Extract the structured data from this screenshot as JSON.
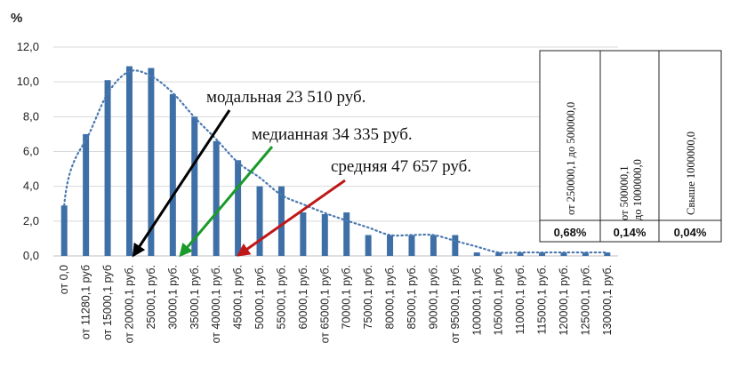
{
  "chart_data": {
    "type": "bar",
    "y_unit": "%",
    "ylim": [
      0,
      12
    ],
    "y_ticks": [
      "0,0",
      "2,0",
      "4,0",
      "6,0",
      "8,0",
      "10,0",
      "12,0"
    ],
    "grid": true,
    "bar_color": "#3e6fa6",
    "trend_color": "#4a78b0",
    "categories": [
      "от 0,0",
      "от 11280,1 руб",
      "от 15000,1 руб",
      "от 20000,1 руб.",
      "25000,1 руб.",
      "30000,1 руб.",
      "35000,1 руб.",
      "от 40000,1 руб.",
      "45000,1 руб.",
      "50000,1 руб.",
      "55000,1 руб.",
      "60000,1 руб.",
      "от 65000,1 руб.",
      "70000,1 руб.",
      "75000,1 руб.",
      "80000,1 руб.",
      "85000,1 руб.",
      "90000,1 руб.",
      "от 95000,1 руб.",
      "100000,1 руб.",
      "105000,1 руб.",
      "110000,1 руб.",
      "115000,1 руб.",
      "120000,1 руб.",
      "125000,1 руб.",
      "130000,1 руб."
    ],
    "values": [
      2.9,
      7.0,
      10.1,
      10.9,
      10.8,
      9.3,
      8.0,
      6.6,
      5.5,
      4.0,
      4.0,
      2.5,
      2.4,
      2.5,
      1.2,
      1.2,
      1.2,
      1.2,
      1.2,
      0.2,
      0.2,
      0.2,
      0.2,
      0.2,
      0.2,
      0.2
    ],
    "annotations": [
      {
        "text": "модальная 23 510 руб.",
        "value": 23510,
        "color": "#000000"
      },
      {
        "text": "медианная 34 335 руб.",
        "value": 34335,
        "color": "#1a9a2a"
      },
      {
        "text": "средняя 47 657 руб.",
        "value": 47657,
        "color": "#c01818"
      }
    ],
    "table": [
      {
        "header": "от 250000,1 до 500000,0",
        "value": "0,68%"
      },
      {
        "header": "от 500000,1 до 1000000,0",
        "value": "0,14%"
      },
      {
        "header": "Свыше 1000000,0",
        "value": "0,04%"
      }
    ]
  }
}
